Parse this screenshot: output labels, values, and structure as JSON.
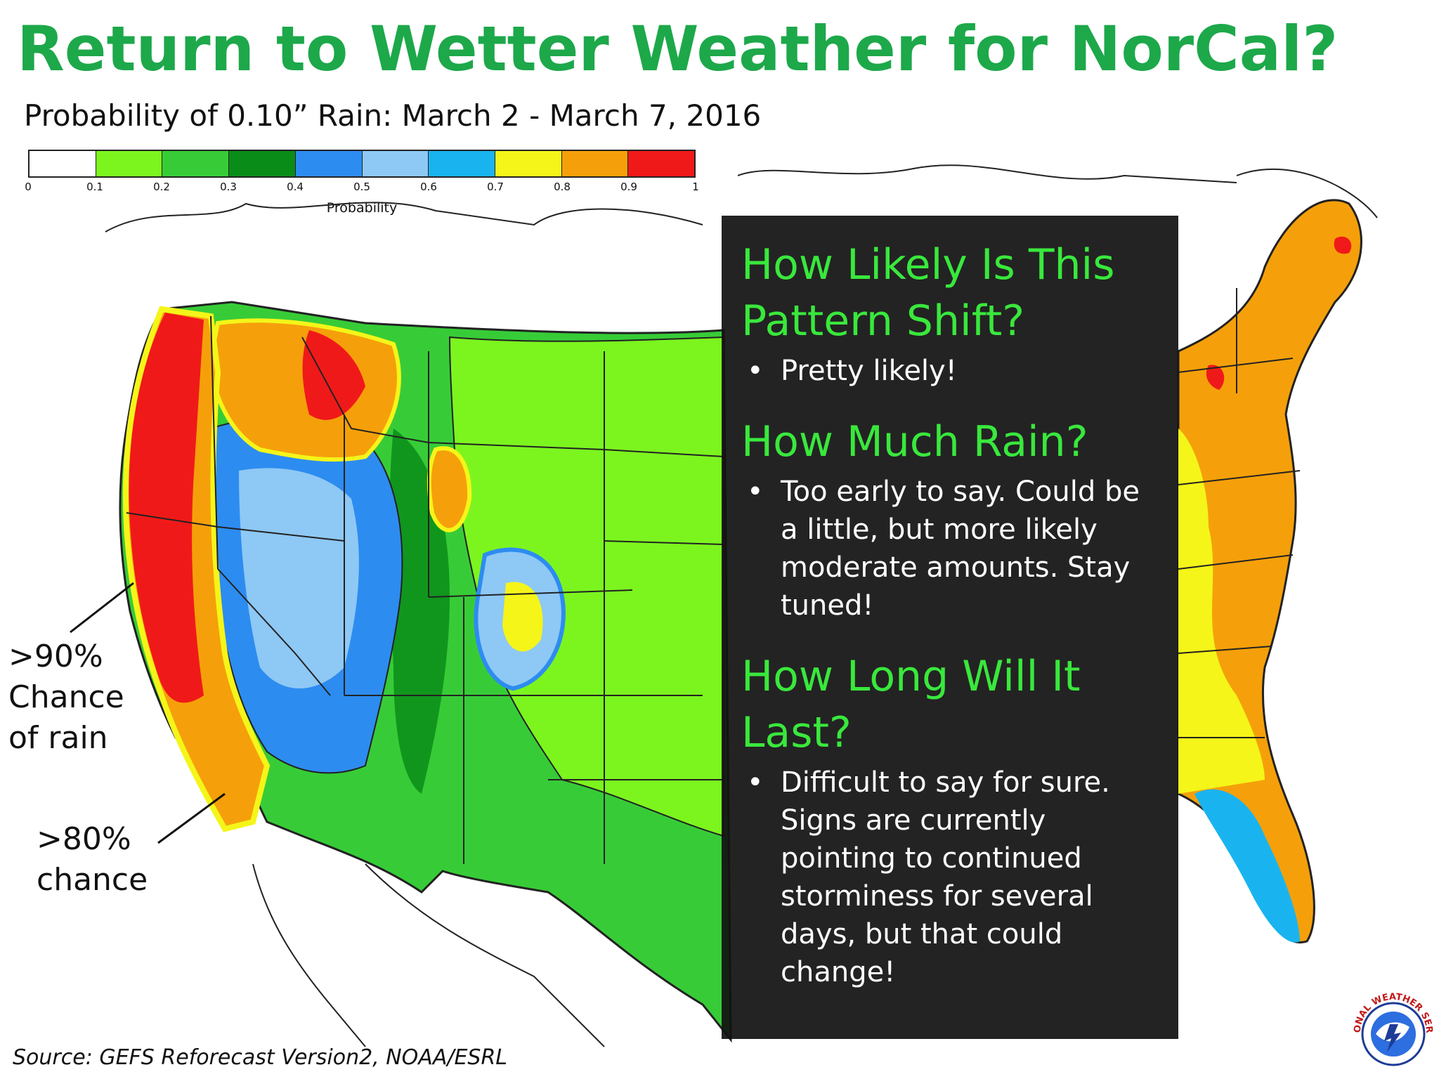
{
  "header": {
    "title": "Return to Wetter Weather for NorCal?",
    "subtitle": "Probability of 0.10” Rain: March 2 - March 7, 2016"
  },
  "legend": {
    "label": "Probability",
    "ticks": [
      "0",
      "0.1",
      "0.2",
      "0.3",
      "0.4",
      "0.5",
      "0.6",
      "0.7",
      "0.8",
      "0.9",
      "1"
    ],
    "colors": [
      "#ffffff",
      "#7cf51f",
      "#37cc37",
      "#0a8c19",
      "#2d8cf0",
      "#8ec8f5",
      "#19b4f0",
      "#f5f519",
      "#f5a00a",
      "#f01919"
    ]
  },
  "annotations": {
    "ninety_lines": [
      ">90%",
      "Chance",
      "of rain"
    ],
    "eighty_lines": [
      ">80%",
      "chance"
    ]
  },
  "info_panel": {
    "sections": [
      {
        "heading_lines": [
          "How Likely Is This",
          "Pattern Shift?"
        ],
        "bullets": [
          "Pretty likely!"
        ]
      },
      {
        "heading_lines": [
          "How Much Rain?"
        ],
        "bullets": [
          "Too early to say. Could be a little, but more likely moderate amounts. Stay tuned!"
        ]
      },
      {
        "heading_lines": [
          "How Long Will It",
          "Last?"
        ],
        "bullets": [
          "Difficult to say for sure. Signs are currently pointing to continued storminess for several days, but that could change!"
        ]
      }
    ]
  },
  "source": "Source: GEFS Reforecast Version2, NOAA/ESRL",
  "logo": {
    "text": "NATIONAL WEATHER SERVICE",
    "icon": "nws-logo-icon"
  }
}
